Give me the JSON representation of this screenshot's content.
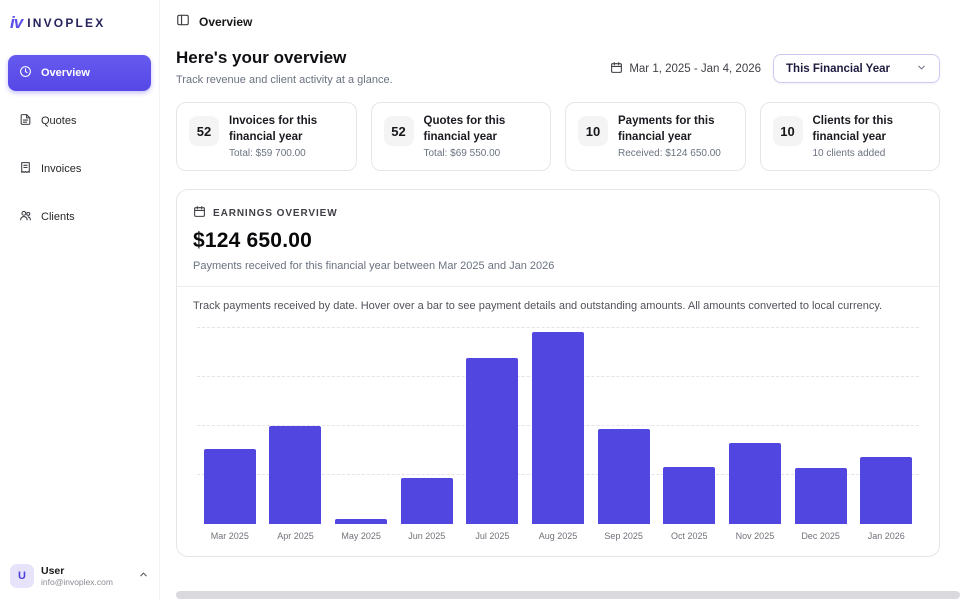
{
  "brand": {
    "logo_mark": "iv",
    "logo_text": "invoplex"
  },
  "topbar": {
    "title": "Overview"
  },
  "sidebar": {
    "items": [
      {
        "label": "Overview",
        "active": true
      },
      {
        "label": "Quotes",
        "active": false
      },
      {
        "label": "Invoices",
        "active": false
      },
      {
        "label": "Clients",
        "active": false
      }
    ],
    "user": {
      "initial": "U",
      "name": "User",
      "email": "info@invoplex.com"
    }
  },
  "overview": {
    "title": "Here's your overview",
    "subtitle": "Track revenue and client activity at a glance.",
    "date_range": "Mar 1, 2025 - Jan 4, 2026",
    "period_select": "This Financial Year"
  },
  "stat_cards": [
    {
      "value": "52",
      "title": "Invoices for this financial year",
      "detail": "Total: $59 700.00"
    },
    {
      "value": "52",
      "title": "Quotes for this financial year",
      "detail": "Total: $69 550.00"
    },
    {
      "value": "10",
      "title": "Payments for this financial year",
      "detail": "Received: $124 650.00"
    },
    {
      "value": "10",
      "title": "Clients for this financial year",
      "detail": "10 clients added"
    }
  ],
  "earnings": {
    "label": "EARNINGS OVERVIEW",
    "amount": "$124 650.00",
    "subtitle": "Payments received for this financial year between Mar 2025 and Jan 2026",
    "description": "Track payments received by date. Hover over a bar to see payment details and outstanding amounts. All amounts converted to local currency."
  },
  "chart_data": {
    "type": "bar",
    "title": "Earnings Overview",
    "categories": [
      "Mar 2025",
      "Apr 2025",
      "May 2025",
      "Jun 2025",
      "Jul 2025",
      "Aug 2025",
      "Sep 2025",
      "Oct 2025",
      "Nov 2025",
      "Dec 2025",
      "Jan 2026"
    ],
    "values": [
      9900,
      13000,
      700,
      6100,
      22000,
      25500,
      12600,
      7600,
      10800,
      7500,
      8950
    ],
    "xlabel": "",
    "ylabel": "",
    "ylim": [
      0,
      26000
    ],
    "legend": "none",
    "grid": "dashed-horizontal",
    "bar_color": "#5146e0"
  },
  "colors": {
    "accent": "#5748e6",
    "bar": "#5146e0",
    "border": "#e6e6ea",
    "muted_text": "#6b7280"
  }
}
